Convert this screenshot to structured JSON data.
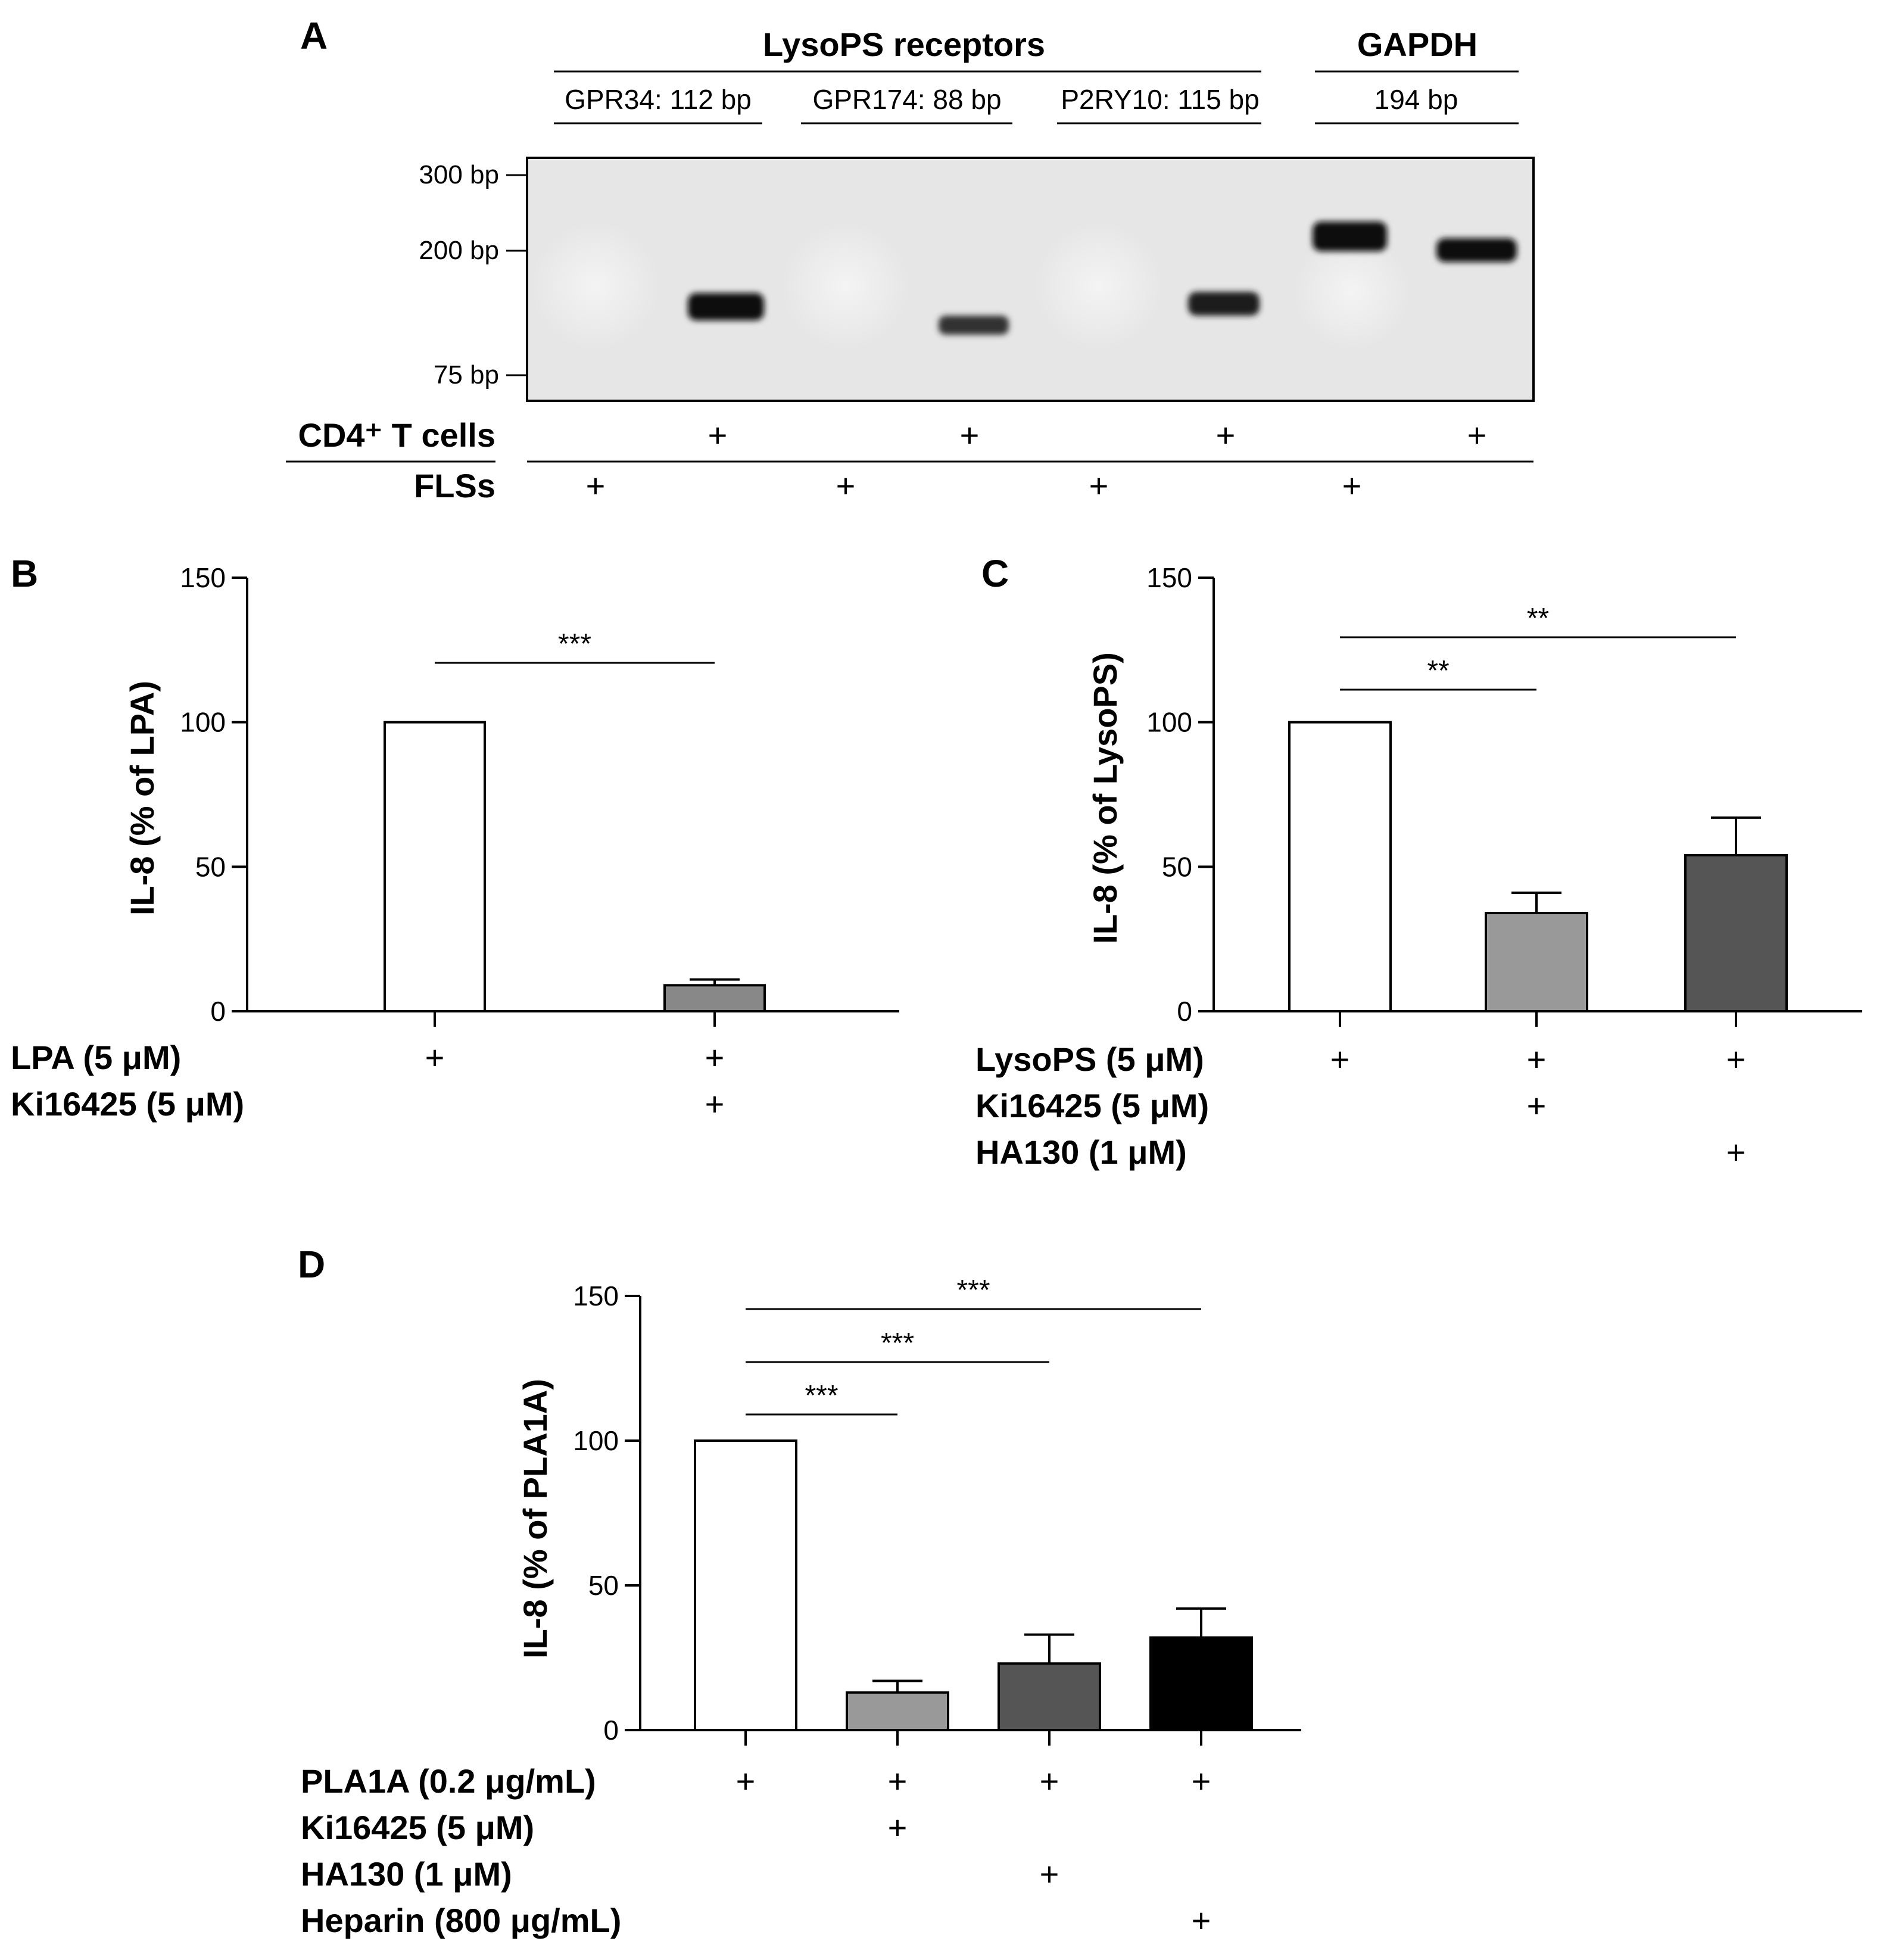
{
  "panels": {
    "A": {
      "letter": "A",
      "group_labels": [
        "LysoPS receptors",
        "GAPDH"
      ],
      "gene_labels": [
        "GPR34: 112 bp",
        "GPR174: 88 bp",
        "P2RY10: 115 bp",
        "194 bp"
      ],
      "ladder": [
        "300 bp",
        "200 bp",
        "75 bp"
      ],
      "row_labels": [
        "CD4⁺ T cells",
        "FLSs"
      ],
      "plus": "+"
    },
    "B": {
      "letter": "B",
      "ylabel": "IL-8 (% of LPA)",
      "significance": [
        "***"
      ],
      "treatments": [
        "LPA (5 μM)",
        "Ki16425 (5 μM)"
      ],
      "plus": "+"
    },
    "C": {
      "letter": "C",
      "ylabel": "IL-8 (% of LysoPS)",
      "significance": [
        "**",
        "**"
      ],
      "treatments": [
        "LysoPS (5 μM)",
        "Ki16425 (5 μM)",
        "HA130 (1 μM)"
      ],
      "plus": "+"
    },
    "D": {
      "letter": "D",
      "ylabel": "IL-8 (% of PLA1A)",
      "significance": [
        "***",
        "***",
        "***"
      ],
      "treatments": [
        "PLA1A (0.2 μg/mL)",
        "Ki16425 (5 μM)",
        "HA130 (1 μM)",
        "Heparin (800 μg/mL)"
      ],
      "plus": "+"
    }
  },
  "chart_data": [
    {
      "panel": "B",
      "type": "bar",
      "ylabel": "IL-8 (% of LPA)",
      "ylim": [
        0,
        150
      ],
      "yticks": [
        0,
        50,
        100,
        150
      ],
      "values": [
        100,
        9
      ],
      "errors": [
        0,
        2
      ],
      "colors": [
        "#ffffff",
        "#888888"
      ],
      "treatment_matrix": [
        [
          true,
          true
        ],
        [
          false,
          true
        ]
      ],
      "comparisons": [
        {
          "from": 0,
          "to": 1,
          "label": "***"
        }
      ]
    },
    {
      "panel": "C",
      "type": "bar",
      "ylabel": "IL-8 (% of LysoPS)",
      "ylim": [
        0,
        150
      ],
      "yticks": [
        0,
        50,
        100,
        150
      ],
      "values": [
        100,
        34,
        54
      ],
      "errors": [
        0,
        7,
        13
      ],
      "colors": [
        "#ffffff",
        "#999999",
        "#555555"
      ],
      "treatment_matrix": [
        [
          true,
          true,
          true
        ],
        [
          false,
          true,
          false
        ],
        [
          false,
          false,
          true
        ]
      ],
      "comparisons": [
        {
          "from": 0,
          "to": 1,
          "label": "**"
        },
        {
          "from": 0,
          "to": 2,
          "label": "**"
        }
      ]
    },
    {
      "panel": "D",
      "type": "bar",
      "ylabel": "IL-8 (% of PLA1A)",
      "ylim": [
        0,
        150
      ],
      "yticks": [
        0,
        50,
        100,
        150
      ],
      "values": [
        100,
        13,
        23,
        32
      ],
      "errors": [
        0,
        4,
        10,
        10
      ],
      "colors": [
        "#ffffff",
        "#999999",
        "#555555",
        "#000000"
      ],
      "treatment_matrix": [
        [
          true,
          true,
          true,
          true
        ],
        [
          false,
          true,
          false,
          false
        ],
        [
          false,
          false,
          true,
          false
        ],
        [
          false,
          false,
          false,
          true
        ]
      ],
      "comparisons": [
        {
          "from": 0,
          "to": 1,
          "label": "***"
        },
        {
          "from": 0,
          "to": 2,
          "label": "***"
        },
        {
          "from": 0,
          "to": 3,
          "label": "***"
        }
      ]
    }
  ]
}
